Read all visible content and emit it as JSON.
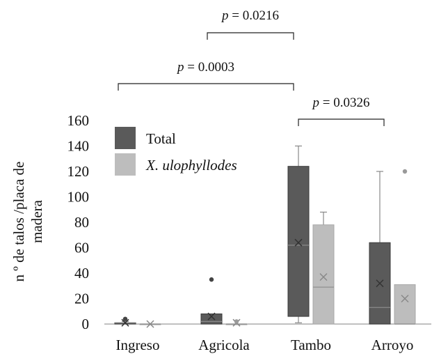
{
  "chart_data": {
    "type": "box",
    "categories": [
      "Ingreso",
      "Agricola",
      "Tambo",
      "Arroyo"
    ],
    "ylabel": [
      "n º de talos /placa de",
      "madera"
    ],
    "ylim": [
      0,
      160
    ],
    "yticks": [
      0,
      20,
      40,
      60,
      80,
      100,
      120,
      140,
      160
    ],
    "legend_position": "top-left",
    "series": [
      {
        "name": "Total",
        "color": "#5a5a5a",
        "boxes": [
          {
            "category": "Ingreso",
            "min": 0,
            "q1": 0,
            "median": 1,
            "q3": 1,
            "max": 2,
            "mean": 1,
            "outliers": [
              4
            ]
          },
          {
            "category": "Agricola",
            "min": 0,
            "q1": 0,
            "median": 2,
            "q3": 8,
            "max": 8,
            "mean": 6,
            "outliers": [
              35
            ]
          },
          {
            "category": "Tambo",
            "min": 1,
            "q1": 6,
            "median": 62,
            "q3": 124,
            "max": 140,
            "mean": 64,
            "outliers": []
          },
          {
            "category": "Arroyo",
            "min": 0,
            "q1": 0,
            "median": 13,
            "q3": 64,
            "max": 120,
            "mean": 32,
            "outliers": []
          }
        ]
      },
      {
        "name": "X. ulophyllodes",
        "color": "#bdbdbd",
        "boxes": [
          {
            "category": "Ingreso",
            "min": 0,
            "q1": 0,
            "median": 0,
            "q3": 0,
            "max": 0,
            "mean": 0,
            "outliers": []
          },
          {
            "category": "Agricola",
            "min": 0,
            "q1": 0,
            "median": 0,
            "q3": 0,
            "max": 0,
            "mean": 1,
            "outliers": [
              2
            ]
          },
          {
            "category": "Tambo",
            "min": 0,
            "q1": 0,
            "median": 29,
            "q3": 78,
            "max": 88,
            "mean": 37,
            "outliers": []
          },
          {
            "category": "Arroyo",
            "min": 0,
            "q1": 0,
            "median": 0,
            "q3": 31,
            "max": 31,
            "mean": 20,
            "outliers": [
              120
            ]
          }
        ]
      }
    ],
    "annotations": [
      {
        "text": "p = 0.0216",
        "from": "Agricola",
        "to": "Tambo"
      },
      {
        "text": "p = 0.0003",
        "from": "Ingreso",
        "to": "Tambo"
      },
      {
        "text": "p = 0.0326",
        "from": "Tambo",
        "to": "Arroyo"
      }
    ]
  }
}
